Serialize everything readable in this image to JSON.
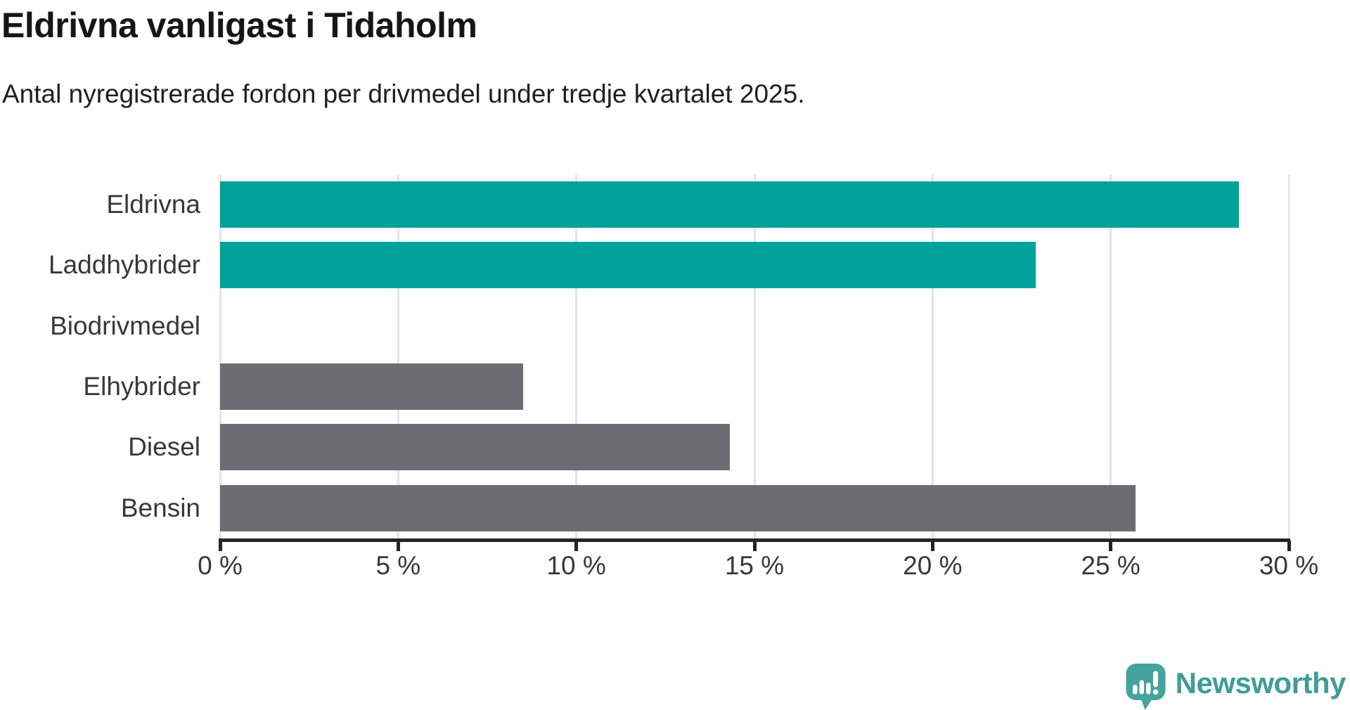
{
  "chart": {
    "title": "Eldrivna vanligast i Tidaholm",
    "subtitle": "Antal nyregistrerade fordon per drivmedel under tredje kvartalet 2025."
  },
  "chart_data": {
    "type": "bar",
    "orientation": "horizontal",
    "title": "Eldrivna vanligast i Tidaholm",
    "subtitle": "Antal nyregistrerade fordon per drivmedel under tredje kvartalet 2025.",
    "categories": [
      "Eldrivna",
      "Laddhybrider",
      "Biodrivmedel",
      "Elhybrider",
      "Diesel",
      "Bensin"
    ],
    "values": [
      28.6,
      22.9,
      0,
      8.5,
      14.3,
      25.7
    ],
    "unit": "%",
    "bar_colors": [
      "#00a29a",
      "#00a29a",
      "#00a29a",
      "#6d6c75",
      "#6d6c75",
      "#6d6c75"
    ],
    "x_ticks": [
      "0 %",
      "5 %",
      "10 %",
      "15 %",
      "20 %",
      "25 %",
      "30 %"
    ],
    "x_tick_values": [
      0,
      5,
      10,
      15,
      20,
      25,
      30
    ],
    "xlim": [
      0,
      30
    ],
    "xlabel": "",
    "ylabel": "",
    "grid": true,
    "legend": "none"
  },
  "colors": {
    "teal": "#00a29a",
    "gray": "#6d6c75",
    "gridline": "#e4e4e4",
    "axis": "#242424",
    "text": "#383838",
    "logo_teal": "#3f9d97",
    "logo_icon_teal": "#44a39d"
  },
  "logo": {
    "text": "Newsworthy",
    "icon": "newsworthy-speech-bubble-chart-icon"
  }
}
